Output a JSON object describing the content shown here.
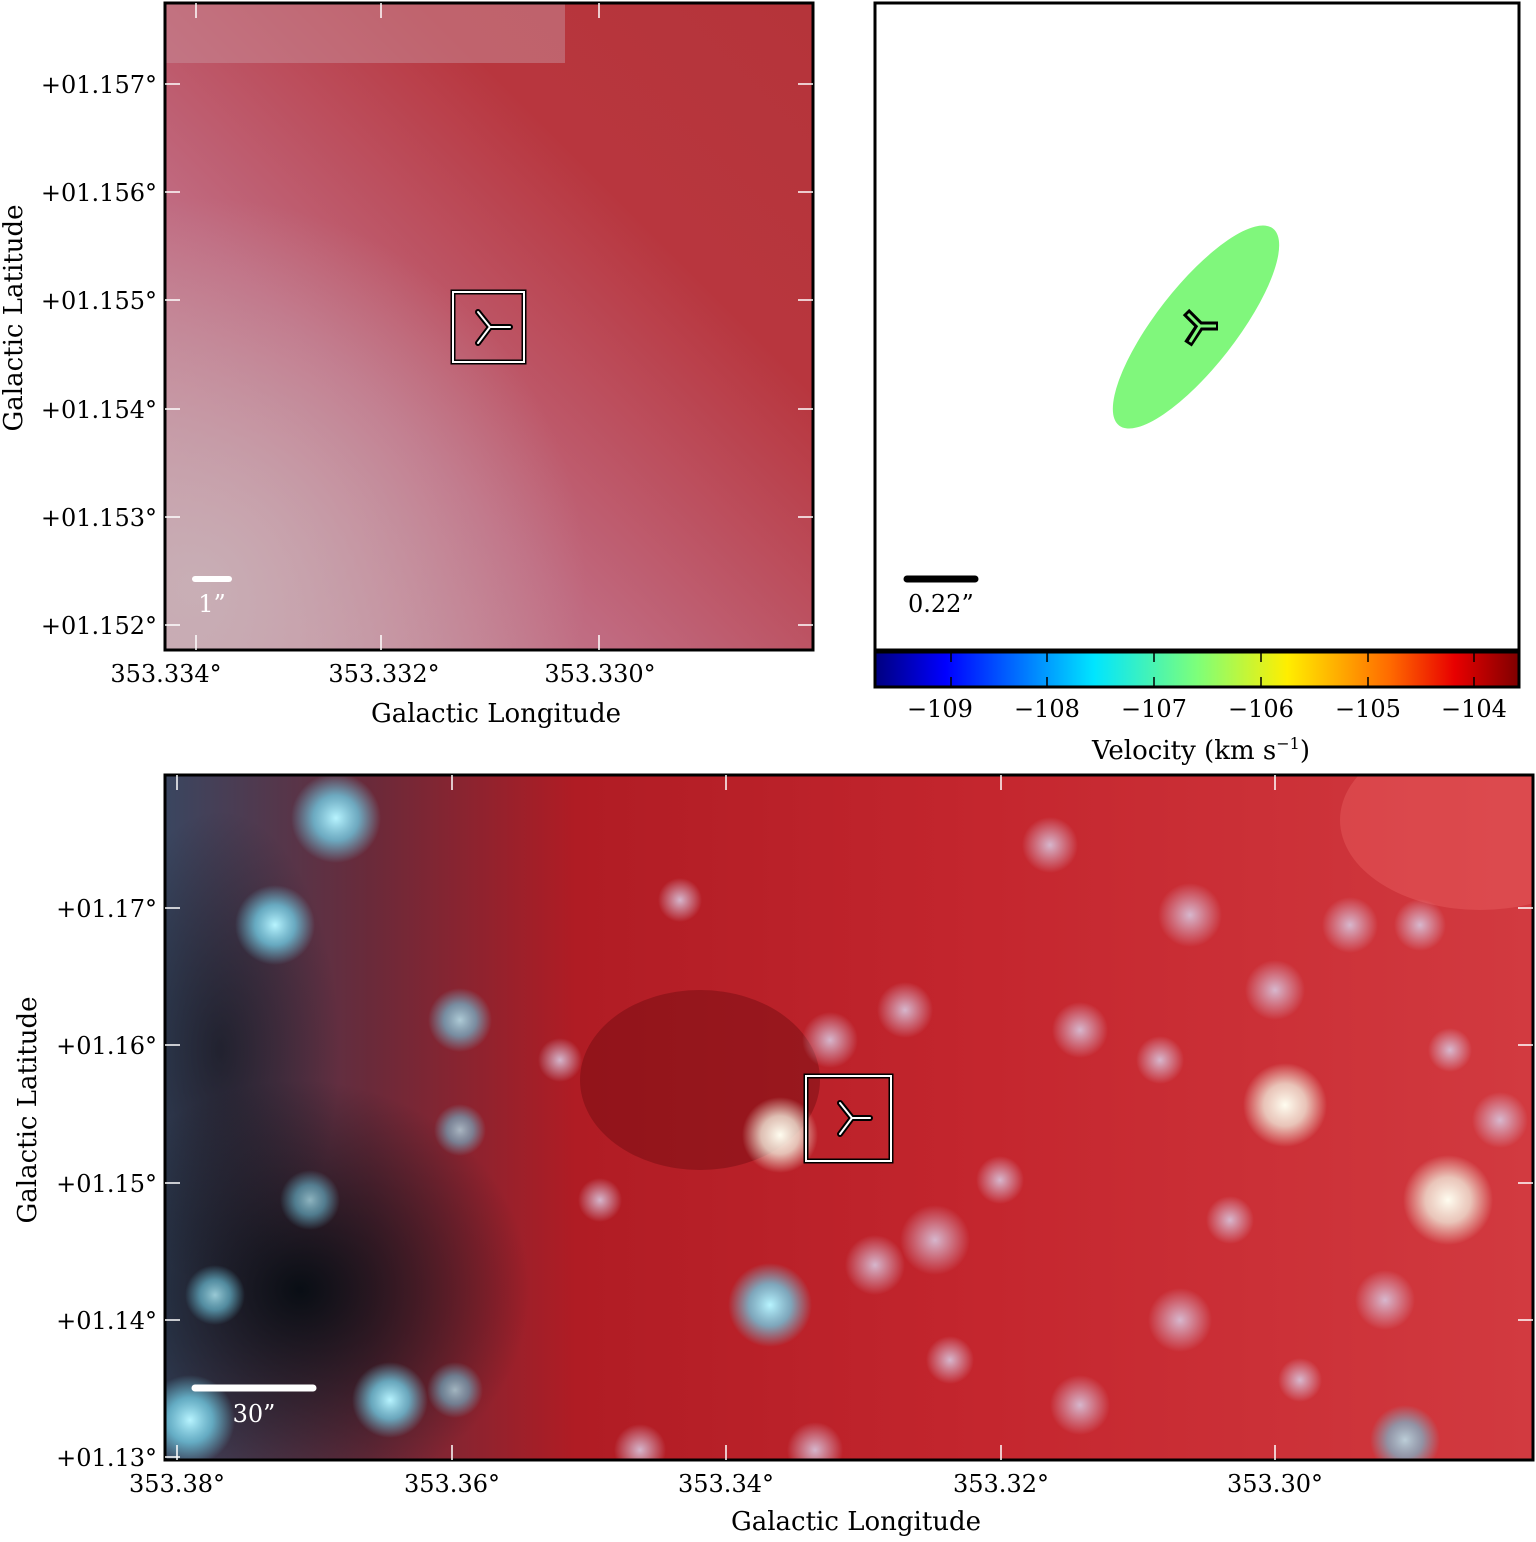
{
  "panel_zoom": {
    "x_ticks": [
      "353.334°",
      "353.332°",
      "353.330°"
    ],
    "y_ticks": [
      "+01.157°",
      "+01.156°",
      "+01.155°",
      "+01.154°",
      "+01.153°",
      "+01.152°"
    ],
    "xlabel": "Galactic Longitude",
    "ylabel": "Galactic Latitude",
    "scalebar": "1”"
  },
  "panel_velocity": {
    "scalebar": "0.22”",
    "colorbar_ticks": [
      "−109",
      "−108",
      "−107",
      "−106",
      "−105",
      "−104"
    ],
    "colorbar_label": "Velocity (km s",
    "colorbar_label_sup": "−1",
    "colorbar_label_end": ")",
    "ellipse_color": "#80f77c"
  },
  "panel_wide": {
    "x_ticks": [
      "353.38°",
      "353.36°",
      "353.34°",
      "353.32°",
      "353.30°"
    ],
    "y_ticks": [
      "+01.17°",
      "+01.16°",
      "+01.15°",
      "+01.14°",
      "+01.13°"
    ],
    "xlabel": "Galactic Longitude",
    "ylabel": "Galactic Latitude",
    "scalebar": "30”"
  }
}
